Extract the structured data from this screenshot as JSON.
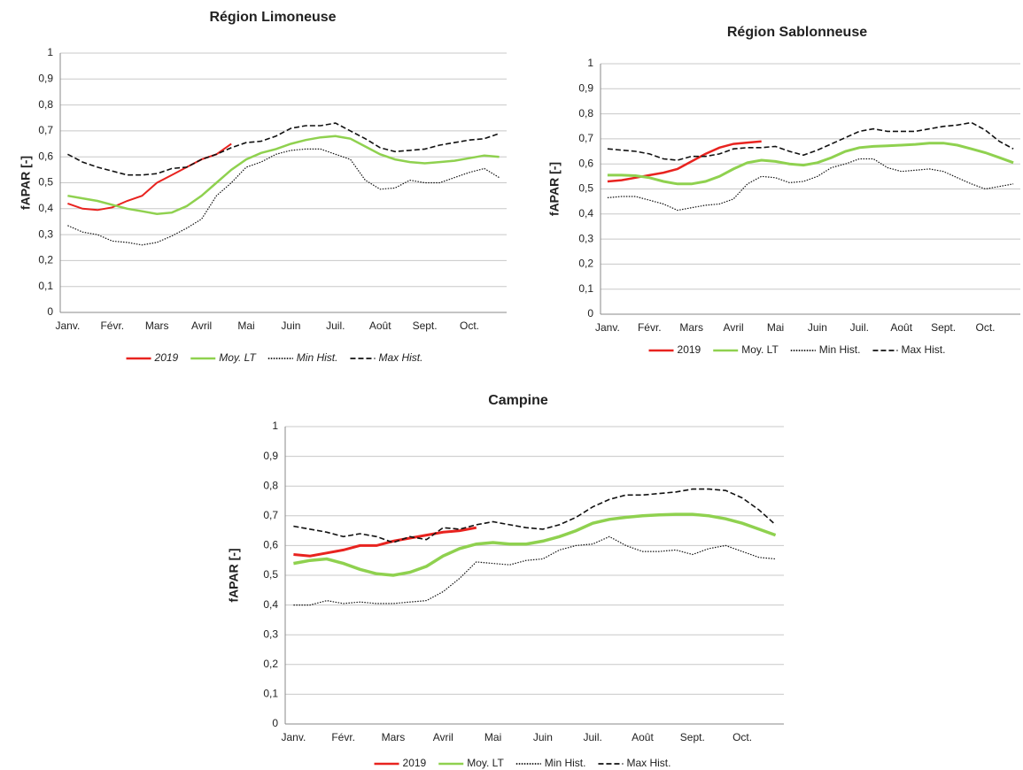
{
  "chart_data": [
    {
      "type": "line",
      "title": "Région Limoneuse",
      "y_label": "fAPAR [-]",
      "categories": [
        "Janv.",
        null,
        null,
        "Févr.",
        null,
        null,
        "Mars",
        null,
        null,
        "Avril",
        null,
        null,
        "Mai",
        null,
        null,
        "Juin",
        null,
        null,
        "Juil.",
        null,
        null,
        "Août",
        null,
        null,
        "Sept.",
        null,
        null,
        "Oct.",
        null,
        null
      ],
      "ylim": [
        0,
        1
      ],
      "yticks": [
        0,
        {
          "value": 0.1,
          "label": "0,1"
        },
        {
          "value": 0.2,
          "label": "0,2"
        },
        {
          "value": 0.3,
          "label": "0,3"
        },
        {
          "value": 0.4,
          "label": "0,4"
        },
        {
          "value": 0.5,
          "label": "0,5"
        },
        {
          "value": 0.6,
          "label": "0,6"
        },
        {
          "value": 0.7,
          "label": "0,7"
        },
        {
          "value": 0.8,
          "label": "0,8"
        },
        {
          "value": 0.9,
          "label": "0,9"
        },
        1
      ],
      "grid": true,
      "series": [
        {
          "name": "2019",
          "color": "#e8231f",
          "style": "solid",
          "values": [
            0.42,
            0.4,
            0.395,
            0.405,
            0.43,
            0.45,
            0.5,
            0.53,
            0.56,
            0.59,
            0.61,
            0.65,
            null,
            null,
            null,
            null,
            null,
            null,
            null,
            null,
            null,
            null,
            null,
            null,
            null,
            null,
            null,
            null,
            null,
            null
          ]
        },
        {
          "name": "Moy. LT",
          "color": "#8fd14f",
          "style": "solid",
          "values": [
            0.45,
            0.44,
            0.43,
            0.415,
            0.4,
            0.39,
            0.38,
            0.385,
            0.41,
            0.45,
            0.5,
            0.55,
            0.59,
            0.615,
            0.63,
            0.65,
            0.665,
            0.675,
            0.68,
            0.67,
            0.64,
            0.61,
            0.59,
            0.58,
            0.575,
            0.58,
            0.585,
            0.595,
            0.605,
            0.6
          ]
        },
        {
          "name": "Min Hist.",
          "color": "#111111",
          "style": "dotted",
          "values": [
            0.335,
            0.31,
            0.3,
            0.275,
            0.27,
            0.26,
            0.27,
            0.295,
            0.325,
            0.36,
            0.45,
            0.5,
            0.56,
            0.58,
            0.61,
            0.625,
            0.63,
            0.63,
            0.61,
            0.59,
            0.51,
            0.475,
            0.48,
            0.51,
            0.5,
            0.5,
            0.52,
            0.54,
            0.555,
            0.52
          ]
        },
        {
          "name": "Max Hist.",
          "color": "#111111",
          "style": "dashed",
          "values": [
            0.61,
            0.58,
            0.56,
            0.545,
            0.53,
            0.53,
            0.535,
            0.555,
            0.56,
            0.59,
            0.61,
            0.635,
            0.655,
            0.66,
            0.68,
            0.71,
            0.72,
            0.72,
            0.73,
            0.7,
            0.67,
            0.635,
            0.62,
            0.625,
            0.63,
            0.645,
            0.655,
            0.665,
            0.67,
            0.69
          ]
        }
      ]
    },
    {
      "type": "line",
      "title": "Région Sablonneuse",
      "y_label": "fAPAR [-]",
      "categories": [
        "Janv.",
        null,
        null,
        "Févr.",
        null,
        null,
        "Mars",
        null,
        null,
        "Avril",
        null,
        null,
        "Mai",
        null,
        null,
        "Juin",
        null,
        null,
        "Juil.",
        null,
        null,
        "Août",
        null,
        null,
        "Sept.",
        null,
        null,
        "Oct.",
        null,
        null
      ],
      "ylim": [
        0,
        1
      ],
      "yticks": [
        0,
        {
          "value": 0.1,
          "label": "0,1"
        },
        {
          "value": 0.2,
          "label": "0,2"
        },
        {
          "value": 0.3,
          "label": "0,3"
        },
        {
          "value": 0.4,
          "label": "0,4"
        },
        {
          "value": 0.5,
          "label": "0,5"
        },
        {
          "value": 0.6,
          "label": "0,6"
        },
        {
          "value": 0.7,
          "label": "0,7"
        },
        {
          "value": 0.8,
          "label": "0,8"
        },
        {
          "value": 0.9,
          "label": "0,9"
        },
        1
      ],
      "grid": true,
      "series": [
        {
          "name": "2019",
          "color": "#e8231f",
          "style": "solid",
          "values": [
            0.53,
            0.535,
            0.545,
            0.555,
            0.565,
            0.58,
            0.61,
            0.64,
            0.665,
            0.68,
            0.685,
            0.69,
            null,
            null,
            null,
            null,
            null,
            null,
            null,
            null,
            null,
            null,
            null,
            null,
            null,
            null,
            null,
            null,
            null,
            null
          ]
        },
        {
          "name": "Moy. LT",
          "color": "#8fd14f",
          "style": "solid",
          "values": [
            0.555,
            0.555,
            0.553,
            0.545,
            0.53,
            0.52,
            0.52,
            0.53,
            0.55,
            0.58,
            0.605,
            0.615,
            0.61,
            0.6,
            0.595,
            0.605,
            0.625,
            0.65,
            0.665,
            0.67,
            0.672,
            0.675,
            0.678,
            0.683,
            0.683,
            0.675,
            0.66,
            0.645,
            0.625,
            0.605
          ]
        },
        {
          "name": "Min Hist.",
          "color": "#111111",
          "style": "dotted",
          "values": [
            0.465,
            0.47,
            0.47,
            0.455,
            0.44,
            0.415,
            0.425,
            0.435,
            0.44,
            0.46,
            0.52,
            0.55,
            0.545,
            0.525,
            0.53,
            0.55,
            0.585,
            0.6,
            0.62,
            0.62,
            0.585,
            0.57,
            0.575,
            0.58,
            0.57,
            0.545,
            0.52,
            0.5,
            0.51,
            0.52
          ]
        },
        {
          "name": "Max Hist.",
          "color": "#111111",
          "style": "dashed",
          "values": [
            0.66,
            0.655,
            0.65,
            0.64,
            0.62,
            0.615,
            0.63,
            0.63,
            0.64,
            0.66,
            0.665,
            0.665,
            0.67,
            0.65,
            0.635,
            0.655,
            0.68,
            0.705,
            0.73,
            0.74,
            0.73,
            0.73,
            0.73,
            0.74,
            0.75,
            0.755,
            0.765,
            0.735,
            0.69,
            0.66
          ]
        }
      ]
    },
    {
      "type": "line",
      "title": "Campine",
      "y_label": "fAPAR [-]",
      "categories": [
        "Janv.",
        null,
        null,
        "Févr.",
        null,
        null,
        "Mars",
        null,
        null,
        "Avril",
        null,
        null,
        "Mai",
        null,
        null,
        "Juin",
        null,
        null,
        "Juil.",
        null,
        null,
        "Août",
        null,
        null,
        "Sept.",
        null,
        null,
        "Oct.",
        null,
        null
      ],
      "ylim": [
        0,
        1
      ],
      "yticks": [
        0,
        {
          "value": 0.1,
          "label": "0,1"
        },
        {
          "value": 0.2,
          "label": "0,2"
        },
        {
          "value": 0.3,
          "label": "0,3"
        },
        {
          "value": 0.4,
          "label": "0,4"
        },
        {
          "value": 0.5,
          "label": "0,5"
        },
        {
          "value": 0.6,
          "label": "0,6"
        },
        {
          "value": 0.7,
          "label": "0,7"
        },
        {
          "value": 0.8,
          "label": "0,8"
        },
        {
          "value": 0.9,
          "label": "0,9"
        },
        1
      ],
      "grid": true,
      "series": [
        {
          "name": "2019",
          "color": "#e8231f",
          "style": "solid",
          "values": [
            0.57,
            0.565,
            0.575,
            0.585,
            0.6,
            0.6,
            0.615,
            0.625,
            0.635,
            0.645,
            0.65,
            0.66,
            null,
            null,
            null,
            null,
            null,
            null,
            null,
            null,
            null,
            null,
            null,
            null,
            null,
            null,
            null,
            null,
            null,
            null
          ]
        },
        {
          "name": "Moy. LT",
          "color": "#8fd14f",
          "style": "solid",
          "values": [
            0.54,
            0.55,
            0.555,
            0.54,
            0.52,
            0.505,
            0.5,
            0.51,
            0.53,
            0.565,
            0.59,
            0.605,
            0.61,
            0.605,
            0.605,
            0.615,
            0.63,
            0.65,
            0.675,
            0.688,
            0.695,
            0.7,
            0.703,
            0.705,
            0.705,
            0.7,
            0.69,
            0.675,
            0.655,
            0.635
          ]
        },
        {
          "name": "Min Hist.",
          "color": "#111111",
          "style": "dotted",
          "values": [
            0.4,
            0.4,
            0.415,
            0.405,
            0.41,
            0.405,
            0.405,
            0.41,
            0.415,
            0.445,
            0.49,
            0.545,
            0.54,
            0.535,
            0.55,
            0.555,
            0.585,
            0.6,
            0.605,
            0.63,
            0.6,
            0.58,
            0.58,
            0.585,
            0.57,
            0.59,
            0.6,
            0.58,
            0.56,
            0.555
          ]
        },
        {
          "name": "Max Hist.",
          "color": "#111111",
          "style": "dashed",
          "values": [
            0.665,
            0.655,
            0.645,
            0.63,
            0.64,
            0.63,
            0.61,
            0.63,
            0.62,
            0.66,
            0.655,
            0.67,
            0.68,
            0.67,
            0.66,
            0.655,
            0.67,
            0.695,
            0.73,
            0.755,
            0.77,
            0.77,
            0.775,
            0.78,
            0.79,
            0.79,
            0.785,
            0.76,
            0.72,
            0.67
          ]
        }
      ]
    }
  ]
}
